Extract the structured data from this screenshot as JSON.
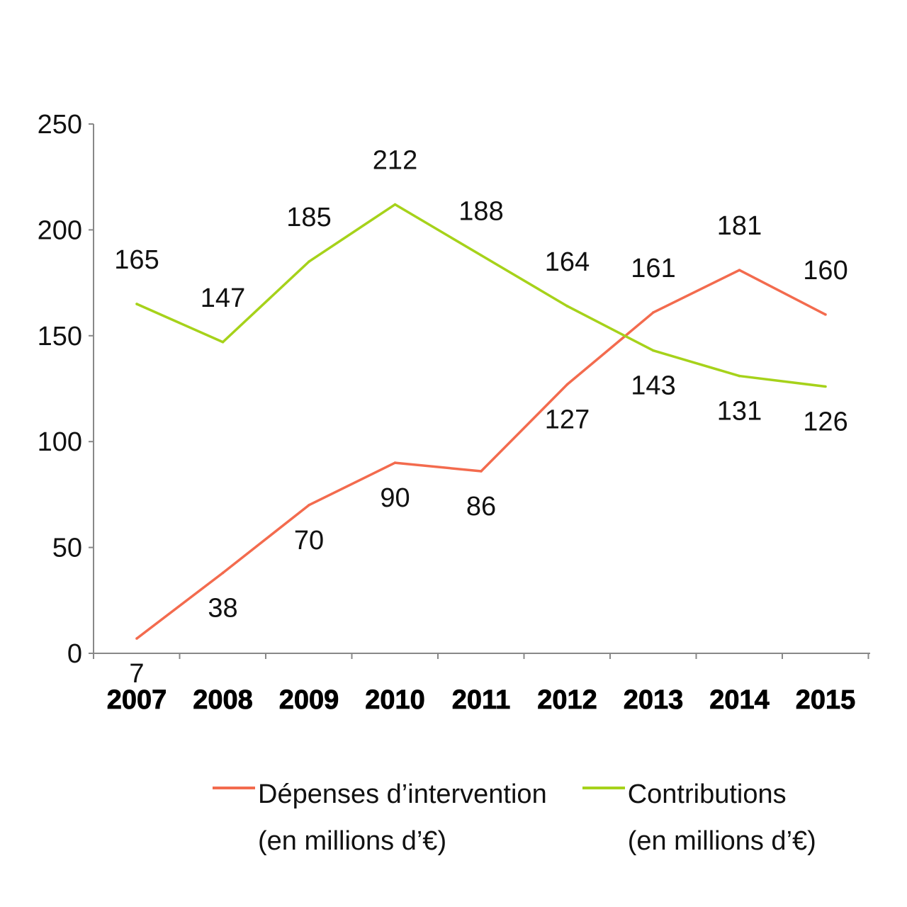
{
  "chart_data": {
    "type": "line",
    "categories": [
      "2007",
      "2008",
      "2009",
      "2010",
      "2011",
      "2012",
      "2013",
      "2014",
      "2015"
    ],
    "series": [
      {
        "name": "Dépenses d’intervention",
        "name_line2": "(en millions d’€)",
        "values": [
          7,
          38,
          70,
          90,
          86,
          127,
          161,
          181,
          160
        ],
        "color": "#f36b4e"
      },
      {
        "name": "Contributions",
        "name_line2": "(en millions d’€)",
        "values": [
          165,
          147,
          185,
          212,
          188,
          164,
          143,
          131,
          126
        ],
        "color": "#a6d21a"
      }
    ],
    "yticks": [
      "0",
      "50",
      "100",
      "150",
      "200",
      "250"
    ],
    "ylim": [
      0,
      250
    ],
    "grid": false,
    "legend_position": "bottom"
  }
}
